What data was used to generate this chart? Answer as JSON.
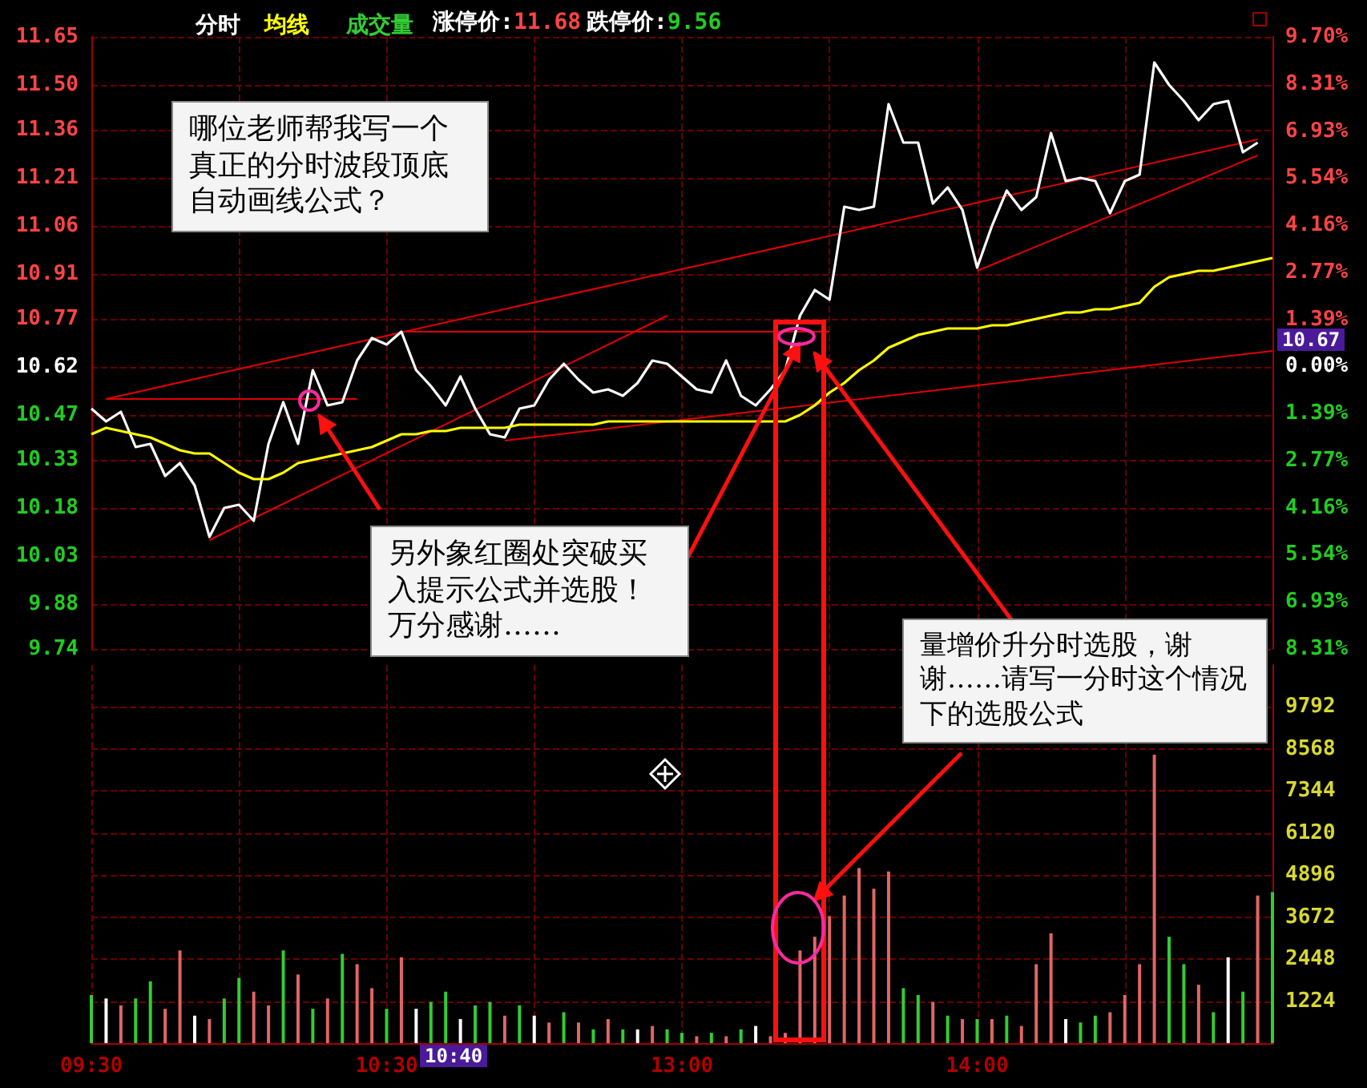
{
  "chart_data": [
    {
      "type": "line",
      "categories": [
        null,
        null,
        null,
        null,
        null,
        null,
        null,
        null,
        null,
        null,
        null,
        null,
        null,
        null,
        null,
        null,
        null,
        null,
        null,
        null,
        null,
        null,
        null,
        null,
        null,
        null,
        null,
        null,
        null,
        null,
        null,
        null,
        null,
        null,
        null,
        null,
        null,
        null,
        null,
        null,
        null,
        null,
        null,
        null,
        null,
        null,
        null,
        null,
        null,
        null,
        null,
        null,
        null,
        null,
        null,
        null,
        null,
        null,
        null,
        null,
        null,
        null,
        null,
        null,
        null,
        null,
        null,
        null,
        null,
        null,
        null,
        null,
        null,
        null,
        null,
        null,
        null,
        null,
        null,
        null,
        null
      ],
      "ylim": [
        9.74,
        11.65
      ],
      "yticks": [
        9.74,
        9.88,
        10.03,
        10.18,
        10.33,
        10.47,
        10.62,
        10.77,
        10.91,
        11.06,
        11.21,
        11.36,
        {
          "value": 11.5,
          "label": "11.50"
        },
        11.65
      ],
      "y2lim": [
        -8.31,
        9.7
      ],
      "y2ticks": [
        {
          "value": -8.31,
          "label": "8.31%"
        },
        {
          "value": -6.93,
          "label": "6.93%"
        },
        {
          "value": -5.54,
          "label": "5.54%"
        },
        {
          "value": -4.16,
          "label": "4.16%"
        },
        {
          "value": -2.77,
          "label": "2.77%"
        },
        {
          "value": -1.39,
          "label": "1.39%"
        },
        {
          "value": 0,
          "label": "0.00%"
        },
        {
          "value": 1.39,
          "label": "1.39%"
        },
        {
          "value": 2.77,
          "label": "2.77%"
        },
        {
          "value": 4.16,
          "label": "4.16%"
        },
        {
          "value": 5.54,
          "label": "5.54%"
        },
        {
          "value": 6.93,
          "label": "6.93%"
        },
        {
          "value": 8.31,
          "label": "8.31%"
        },
        {
          "value": 9.7,
          "label": "9.70%"
        }
      ],
      "grid": true,
      "legend": "top left",
      "marker": "none",
      "series": [
        {
          "name": "分时",
          "color": "#ffffff",
          "values": [
            10.49,
            10.45,
            10.48,
            10.37,
            10.38,
            10.28,
            10.32,
            10.25,
            10.09,
            10.18,
            10.19,
            10.14,
            10.38,
            10.51,
            10.38,
            10.61,
            10.5,
            10.51,
            10.64,
            10.71,
            10.69,
            10.73,
            10.61,
            10.56,
            10.5,
            10.59,
            10.49,
            10.41,
            10.4,
            10.49,
            10.5,
            10.58,
            10.63,
            10.58,
            10.54,
            10.55,
            10.53,
            10.57,
            10.64,
            10.63,
            10.59,
            10.55,
            10.54,
            10.64,
            10.53,
            10.5,
            10.55,
            10.61,
            10.78,
            10.86,
            10.83,
            11.12,
            11.11,
            11.12,
            11.44,
            11.32,
            11.32,
            11.13,
            11.18,
            11.11,
            10.93,
            11.06,
            11.17,
            11.11,
            11.15,
            11.35,
            11.2,
            11.21,
            11.2,
            11.1,
            11.2,
            11.22,
            11.57,
            11.5,
            11.45,
            11.39,
            11.44,
            11.45,
            11.29,
            11.32,
            null
          ]
        },
        {
          "name": "均线",
          "color": "#ffff00",
          "values": [
            10.41,
            10.43,
            10.42,
            10.41,
            10.4,
            10.38,
            10.36,
            10.35,
            10.35,
            10.32,
            10.29,
            10.27,
            10.27,
            10.29,
            10.32,
            10.33,
            10.34,
            10.35,
            10.36,
            10.37,
            10.39,
            10.41,
            10.41,
            10.42,
            10.42,
            10.43,
            10.43,
            10.43,
            10.43,
            10.44,
            10.44,
            10.44,
            10.44,
            10.44,
            10.44,
            10.45,
            10.45,
            10.45,
            10.45,
            10.45,
            10.45,
            10.45,
            10.45,
            10.45,
            10.45,
            10.45,
            10.45,
            10.45,
            10.47,
            10.5,
            10.54,
            10.57,
            10.61,
            10.64,
            10.68,
            10.7,
            10.72,
            10.73,
            10.74,
            10.74,
            10.74,
            10.75,
            10.75,
            10.76,
            10.77,
            10.78,
            10.79,
            10.79,
            10.8,
            10.8,
            10.81,
            10.82,
            10.87,
            10.9,
            10.91,
            10.92,
            10.92,
            10.93,
            10.94,
            10.95,
            10.96
          ]
        },
        {
          "color": "#e00000",
          "values": [
            null,
            10.52,
            null,
            null,
            null,
            null,
            null,
            null,
            null,
            null,
            null,
            null,
            null,
            null,
            null,
            null,
            null,
            null,
            null,
            null,
            null,
            null,
            null,
            null,
            null,
            null,
            null,
            null,
            null,
            null,
            null,
            null,
            null,
            null,
            null,
            null,
            null,
            null,
            null,
            null,
            null,
            null,
            null,
            null,
            null,
            null,
            null,
            null,
            null,
            null,
            null,
            null,
            null,
            null,
            null,
            null,
            null,
            null,
            null,
            null,
            null,
            null,
            null,
            null,
            null,
            null,
            null,
            null,
            null,
            null,
            null,
            null,
            null,
            null,
            null,
            null,
            null,
            null,
            null,
            11.33,
            null
          ]
        },
        {
          "color": "#e00000",
          "values": [
            null,
            null,
            null,
            null,
            null,
            null,
            null,
            null,
            10.08,
            null,
            null,
            null,
            null,
            null,
            null,
            null,
            null,
            null,
            null,
            null,
            null,
            null,
            null,
            null,
            null,
            null,
            null,
            null,
            null,
            null,
            null,
            null,
            null,
            null,
            null,
            null,
            null,
            null,
            null,
            10.78,
            null,
            null,
            null,
            null,
            null,
            null,
            null,
            null,
            null,
            null,
            null,
            null,
            null,
            null,
            null,
            null,
            null,
            null,
            null,
            null,
            null,
            null,
            null,
            null,
            null,
            null,
            null,
            null,
            null,
            null,
            null,
            null,
            null,
            null,
            null,
            null,
            null,
            null,
            null,
            null,
            null
          ]
        },
        {
          "color": "#e00000",
          "values": [
            null,
            null,
            null,
            null,
            null,
            null,
            null,
            null,
            null,
            null,
            null,
            null,
            null,
            null,
            null,
            null,
            null,
            null,
            null,
            null,
            null,
            null,
            null,
            null,
            null,
            null,
            null,
            null,
            10.39,
            null,
            null,
            null,
            null,
            null,
            null,
            null,
            null,
            null,
            null,
            null,
            null,
            null,
            null,
            null,
            null,
            null,
            null,
            null,
            null,
            null,
            null,
            null,
            null,
            null,
            null,
            null,
            null,
            null,
            null,
            null,
            null,
            null,
            null,
            null,
            null,
            null,
            null,
            null,
            null,
            null,
            null,
            null,
            null,
            null,
            null,
            null,
            null,
            null,
            null,
            null,
            10.67
          ]
        },
        {
          "color": "#e00000",
          "values": [
            null,
            10.52,
            null,
            null,
            null,
            null,
            null,
            null,
            null,
            null,
            null,
            null,
            null,
            null,
            null,
            null,
            null,
            null,
            10.52,
            null,
            null,
            null,
            null,
            null,
            null,
            null,
            null,
            null,
            null,
            null,
            null,
            null,
            null,
            null,
            null,
            null,
            null,
            null,
            null,
            null,
            null,
            null,
            null,
            null,
            null,
            null,
            null,
            null,
            null,
            null,
            null,
            null,
            null,
            null,
            null,
            null,
            null,
            null,
            null,
            null,
            null,
            null,
            null,
            null,
            null,
            null,
            null,
            null,
            null,
            null,
            null,
            null,
            null,
            null,
            null,
            null,
            null,
            null,
            null,
            null,
            null
          ]
        },
        {
          "color": "#e00000",
          "values": [
            null,
            null,
            null,
            null,
            null,
            null,
            null,
            null,
            null,
            null,
            null,
            null,
            null,
            null,
            null,
            null,
            null,
            null,
            null,
            null,
            null,
            10.73,
            null,
            null,
            null,
            null,
            null,
            null,
            null,
            null,
            null,
            null,
            null,
            null,
            null,
            null,
            null,
            null,
            null,
            null,
            null,
            null,
            null,
            null,
            null,
            null,
            null,
            null,
            null,
            null,
            10.73,
            null,
            null,
            null,
            null,
            null,
            null,
            null,
            null,
            null,
            null,
            null,
            null,
            null,
            null,
            null,
            null,
            null,
            null,
            null,
            null,
            null,
            null,
            null,
            null,
            null,
            null,
            null,
            null,
            null,
            null
          ]
        },
        {
          "color": "#e00000",
          "values": [
            null,
            null,
            null,
            null,
            null,
            null,
            null,
            null,
            null,
            null,
            null,
            null,
            null,
            null,
            null,
            null,
            null,
            null,
            null,
            null,
            null,
            null,
            null,
            null,
            null,
            null,
            null,
            null,
            null,
            null,
            null,
            null,
            null,
            null,
            null,
            null,
            null,
            null,
            null,
            null,
            null,
            null,
            null,
            null,
            null,
            null,
            null,
            null,
            null,
            null,
            null,
            null,
            null,
            null,
            null,
            null,
            null,
            null,
            null,
            null,
            10.92,
            null,
            null,
            null,
            null,
            null,
            null,
            null,
            null,
            null,
            null,
            null,
            null,
            null,
            null,
            null,
            null,
            null,
            null,
            11.28,
            null
          ]
        }
      ],
      "annotations": [
        "哪位老师帮我写一个真正的分时波段顶底自动画线公式？",
        "另外象红圈处突破买入提示公式并选股！万分感谢……",
        "涨停价:11.68",
        "跌停价:9.56",
        "10.67"
      ]
    },
    {
      "type": "bar",
      "categories": [
        "09:30",
        null,
        null,
        null,
        null,
        null,
        null,
        null,
        null,
        null,
        null,
        null,
        null,
        null,
        null,
        null,
        null,
        null,
        null,
        null,
        "10:30",
        null,
        null,
        null,
        null,
        null,
        null,
        null,
        null,
        null,
        null,
        null,
        null,
        null,
        null,
        null,
        null,
        null,
        null,
        null,
        "13:00",
        null,
        null,
        null,
        null,
        null,
        null,
        null,
        null,
        null,
        null,
        null,
        null,
        null,
        null,
        null,
        null,
        null,
        null,
        null,
        "14:00",
        null,
        null,
        null,
        null,
        null,
        null,
        null,
        null,
        null,
        null,
        null,
        null,
        null,
        null,
        null,
        null,
        null,
        null,
        null,
        null
      ],
      "ylim": [
        0,
        11016
      ],
      "yticks": [
        1224,
        2448,
        3672,
        4896,
        6120,
        7344,
        8568,
        9792
      ],
      "grid": true,
      "legend": "top left",
      "series": [
        {
          "name": "成交量",
          "colors": [
            "#33cc33",
            "#ffffff",
            "#e06666",
            "#33cc33",
            "#33cc33",
            "#e06666",
            "#e06666",
            "#ffffff",
            "#e06666",
            "#33cc33",
            "#33cc33",
            "#e06666",
            "#e06666",
            "#33cc33",
            "#e06666",
            "#33cc33",
            "#e06666",
            "#33cc33",
            "#e06666",
            "#e06666",
            "#33cc33",
            "#e06666",
            "#ffffff",
            "#33cc33",
            "#33cc33",
            "#ffffff",
            "#33cc33",
            "#33cc33",
            "#e06666",
            "#33cc33",
            "#ffffff",
            "#e06666",
            "#33cc33",
            "#e06666",
            "#33cc33",
            "#e06666",
            "#33cc33",
            "#ffffff",
            "#e06666",
            "#33cc33",
            "#33cc33",
            "#e06666",
            "#33cc33",
            "#e06666",
            "#33cc33",
            "#ffffff",
            "#e06666",
            "#e06666",
            "#e06666",
            "#e06666",
            "#e06666",
            "#e06666",
            "#e06666",
            "#e06666",
            "#e06666",
            "#33cc33",
            "#33cc33",
            "#e06666",
            "#33cc33",
            "#e06666",
            "#33cc33",
            "#e06666",
            "#33cc33",
            "#e06666",
            "#e06666",
            "#e06666",
            "#ffffff",
            "#33cc33",
            "#33cc33",
            "#e06666",
            "#e06666",
            "#e06666",
            "#e06666",
            "#33cc33",
            "#33cc33",
            "#e06666",
            "#33cc33",
            "#ffffff",
            "#33cc33",
            "#e06666",
            "#33cc33"
          ],
          "values": [
            1400,
            1300,
            1100,
            1300,
            1800,
            1000,
            2700,
            800,
            700,
            1300,
            1900,
            1500,
            1100,
            2700,
            2000,
            1000,
            1300,
            2600,
            2300,
            1600,
            1000,
            2500,
            1000,
            1200,
            1500,
            700,
            1100,
            1200,
            800,
            1100,
            800,
            600,
            900,
            600,
            400,
            700,
            400,
            400,
            500,
            400,
            300,
            200,
            300,
            200,
            400,
            500,
            200,
            300,
            2700,
            3100,
            3700,
            4300,
            5100,
            4500,
            5000,
            1600,
            1400,
            1200,
            800,
            700,
            700,
            700,
            800,
            500,
            2300,
            3200,
            700,
            600,
            800,
            900,
            1400,
            2300,
            8400,
            3100,
            2300,
            1700,
            900,
            2500,
            1500,
            4300,
            4400
          ]
        }
      ],
      "annotations": [
        "量增价升分时选股，谢谢……请写一分时这个情况下的选股公式",
        "10:40"
      ]
    }
  ]
}
